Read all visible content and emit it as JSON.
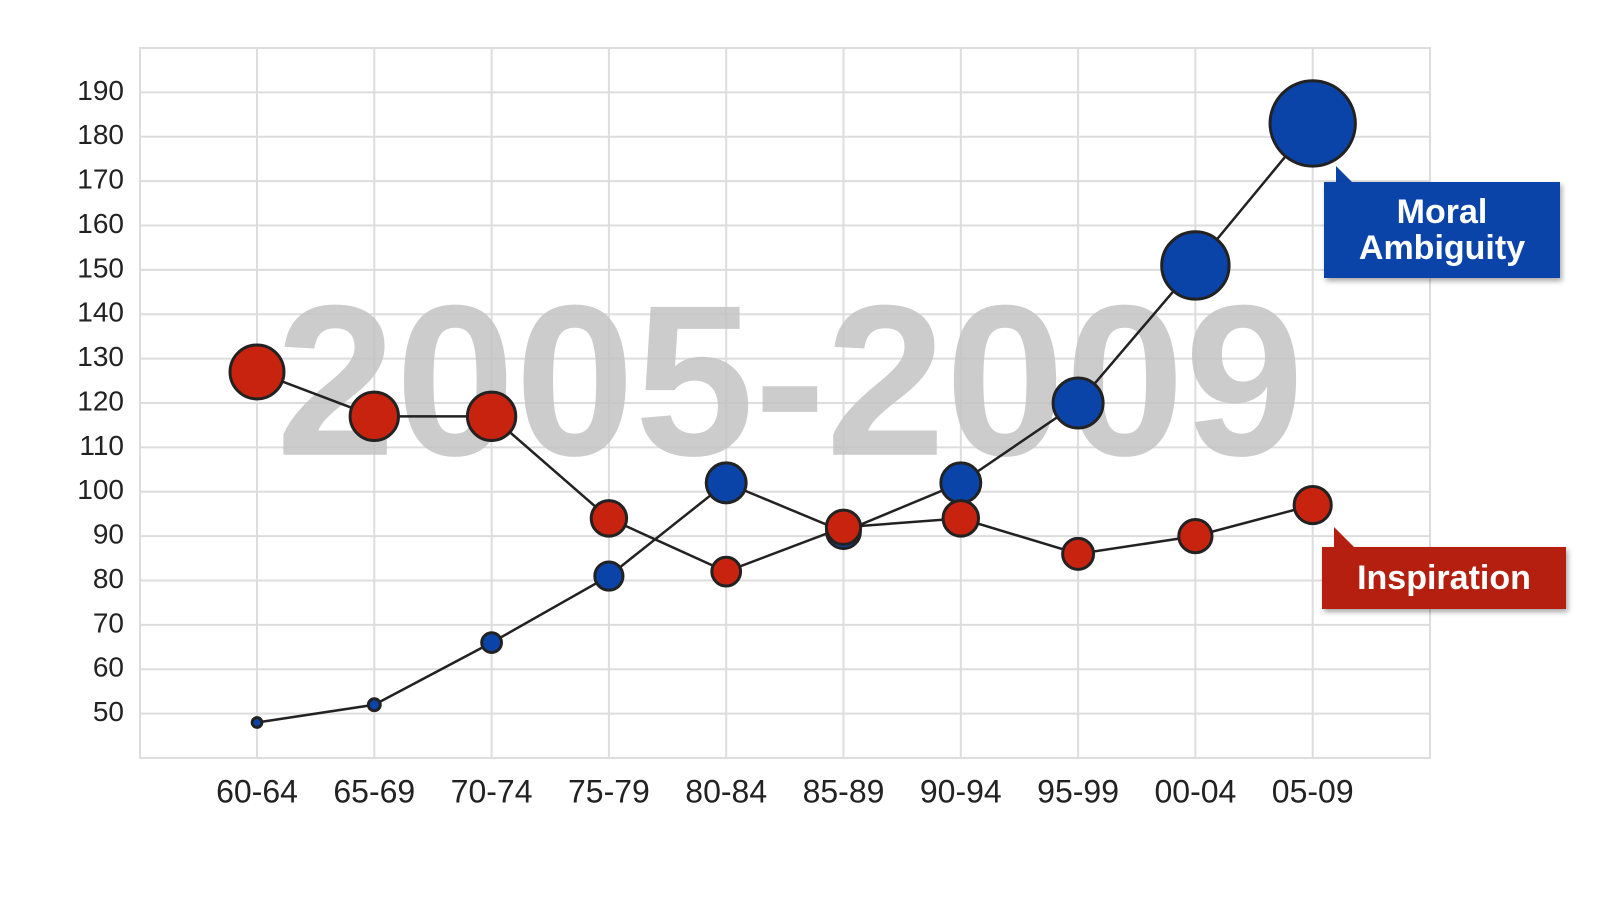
{
  "chart_data": {
    "type": "line",
    "annotation": "2005-2009",
    "categories": [
      "60-64",
      "65-69",
      "70-74",
      "75-79",
      "80-84",
      "85-89",
      "90-94",
      "95-99",
      "00-04",
      "05-09"
    ],
    "series": [
      {
        "name": "Moral Ambiguity",
        "color": "#0b44a8",
        "values": [
          48,
          52,
          66,
          81,
          102,
          91,
          102,
          120,
          151,
          183
        ]
      },
      {
        "name": "Inspiration",
        "color": "#c8230f",
        "values": [
          127,
          117,
          117,
          94,
          82,
          92,
          94,
          86,
          90,
          97
        ]
      }
    ],
    "ylim": [
      40,
      200
    ],
    "yticks": [
      50,
      60,
      70,
      80,
      90,
      100,
      110,
      120,
      130,
      140,
      150,
      160,
      170,
      180,
      190
    ],
    "grid": true
  }
}
